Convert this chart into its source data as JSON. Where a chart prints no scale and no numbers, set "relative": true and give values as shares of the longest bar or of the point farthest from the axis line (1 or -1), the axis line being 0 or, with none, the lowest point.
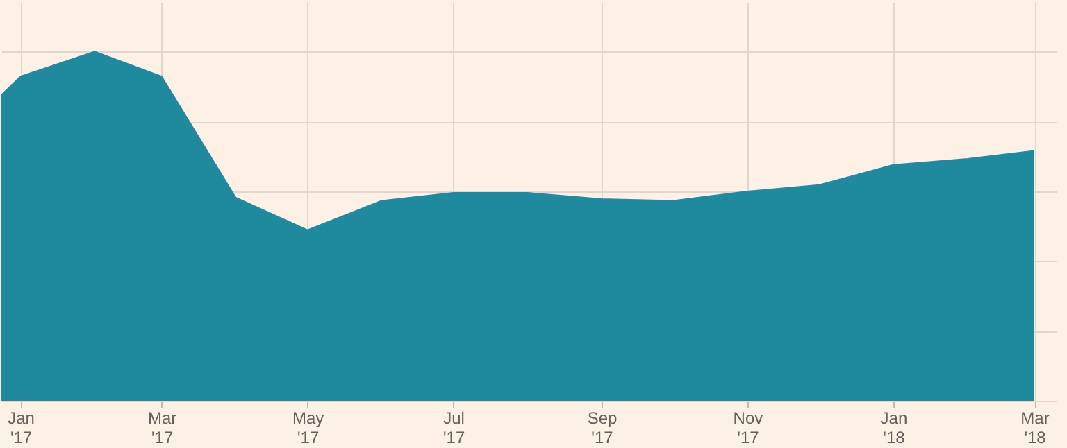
{
  "chart_data": {
    "type": "area",
    "relative": true,
    "grid": true,
    "x": [
      "2016-12-24",
      "2017-01-01",
      "2017-02-01",
      "2017-03-01",
      "2017-04-01",
      "2017-05-01",
      "2017-06-01",
      "2017-07-01",
      "2017-08-01",
      "2017-09-01",
      "2017-10-01",
      "2017-11-01",
      "2017-12-01",
      "2018-01-01",
      "2018-02-01",
      "2018-03-01"
    ],
    "series": [
      {
        "color": "#1f8a9e",
        "values": [
          0.876,
          0.929,
          1,
          0.929,
          0.582,
          0.489,
          0.573,
          0.596,
          0.596,
          0.578,
          0.573,
          0.6,
          0.618,
          0.676,
          0.693,
          0.716
        ]
      }
    ],
    "xlim": [
      "2016-12-24",
      "2018-03-10"
    ],
    "xticks": [
      {
        "value": "2017-01-01",
        "label": "Jan\n'17"
      },
      {
        "value": "2017-03-01",
        "label": "Mar\n'17"
      },
      {
        "value": "2017-05-01",
        "label": "May\n'17"
      },
      {
        "value": "2017-07-01",
        "label": "Jul\n'17"
      },
      {
        "value": "2017-09-01",
        "label": "Sep\n'17"
      },
      {
        "value": "2017-11-01",
        "label": "Nov\n'17"
      },
      {
        "value": "2018-01-01",
        "label": "Jan\n'18"
      },
      {
        "value": "2018-03-01",
        "label": "Mar\n'18"
      }
    ]
  }
}
